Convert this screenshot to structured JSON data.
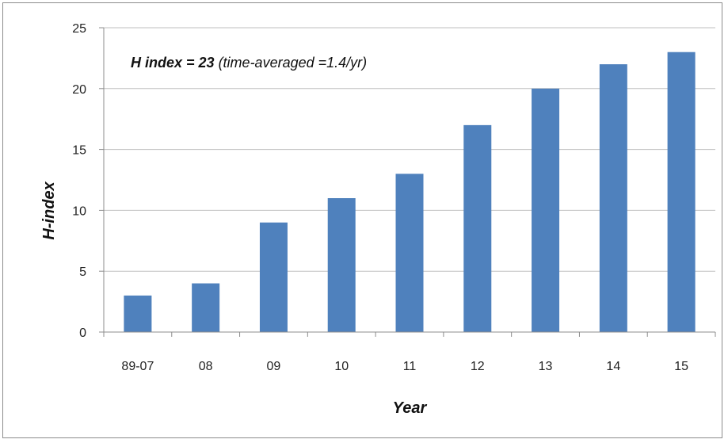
{
  "chart_data": {
    "type": "bar",
    "categories": [
      "89-07",
      "08",
      "09",
      "10",
      "11",
      "12",
      "13",
      "14",
      "15"
    ],
    "values": [
      3,
      4,
      9,
      11,
      13,
      17,
      20,
      22,
      23
    ],
    "xlabel": "Year",
    "ylabel": "H-index",
    "ylim": [
      0,
      25
    ],
    "yticks": [
      0,
      5,
      10,
      15,
      20,
      25
    ],
    "grid": true,
    "legend": "none",
    "annotation": {
      "bold_part": "H index = 23",
      "italic_part": " (time-averaged =1.4/yr)"
    },
    "bar_color": "#4F81BD",
    "grid_color": "#BFBFBF"
  }
}
